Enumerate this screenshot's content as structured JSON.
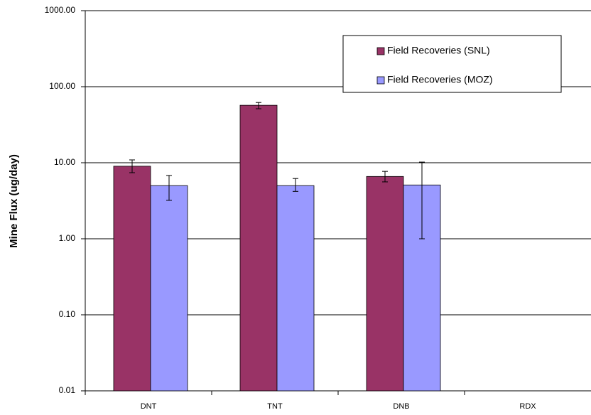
{
  "chart_data": {
    "type": "bar",
    "log_y": true,
    "grid": true,
    "y_label": "Mine Flux (ug/day)",
    "categories": [
      "DNT",
      "TNT",
      "DNB",
      "RDX"
    ],
    "series": [
      {
        "name": "Field Recoveries (SNL)",
        "color": "#993366",
        "values": [
          9.0,
          57,
          6.6,
          null
        ],
        "error_minus": [
          1.6,
          5.7,
          1.0,
          null
        ],
        "error_plus": [
          1.9,
          5,
          1.1,
          null
        ]
      },
      {
        "name": "Field Recoveries (MOZ)",
        "color": "#9999ff",
        "values": [
          5.0,
          5.0,
          5.1,
          null
        ],
        "error_minus": [
          1.8,
          0.8,
          4.1,
          null
        ],
        "error_plus": [
          1.8,
          1.2,
          5.1,
          null
        ]
      }
    ],
    "ylim": [
      0.01,
      1000
    ],
    "yticks": [
      {
        "value": 0.01,
        "label": "0.01"
      },
      {
        "value": 0.1,
        "label": "0.10"
      },
      {
        "value": 1,
        "label": "1.00"
      },
      {
        "value": 10,
        "label": "10.00"
      },
      {
        "value": 100,
        "label": "100.00"
      },
      {
        "value": 1000,
        "label": "1000.00"
      }
    ],
    "legend": "top-right"
  }
}
